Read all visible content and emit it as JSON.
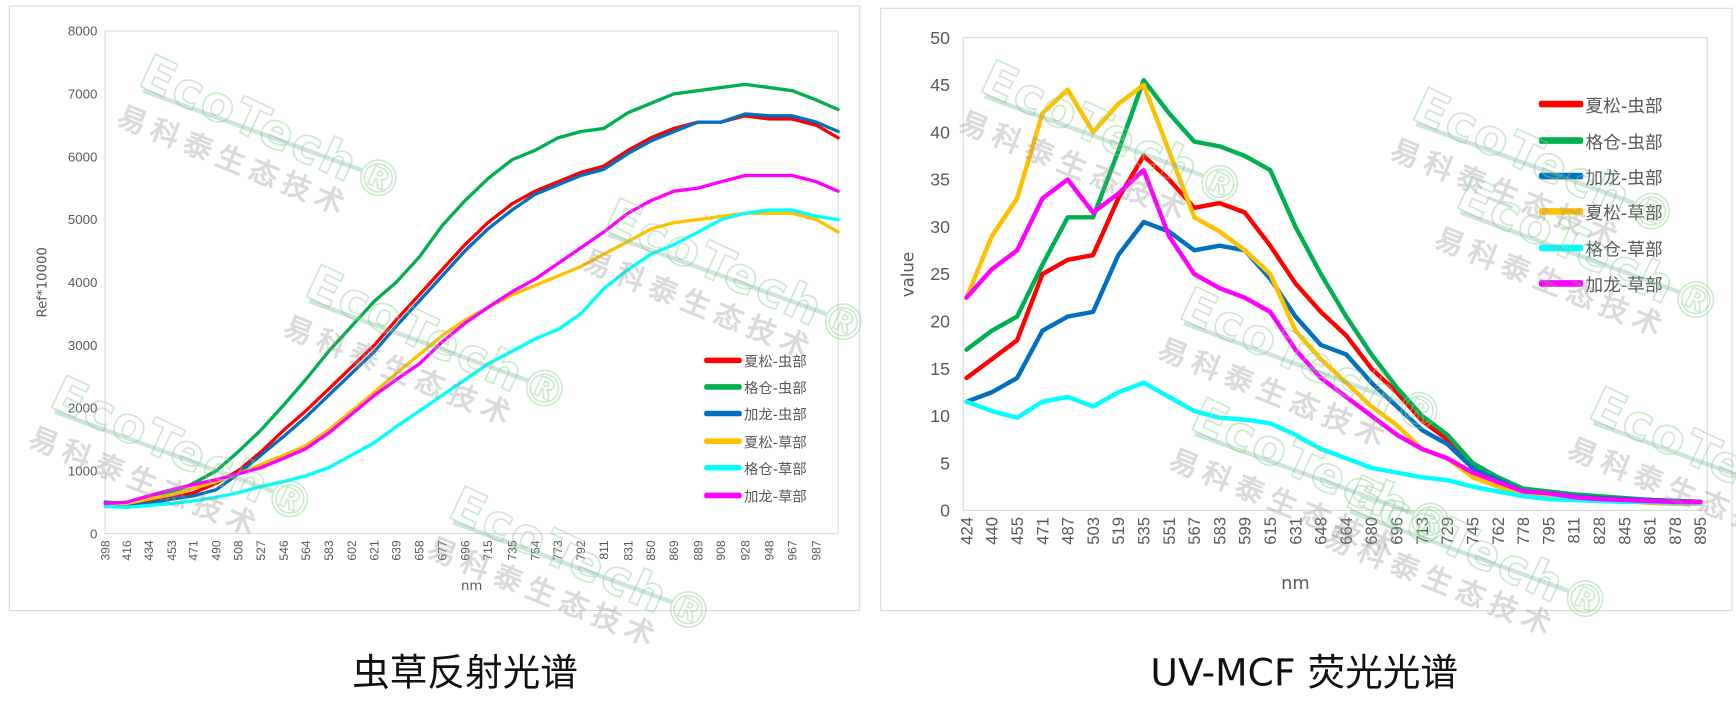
{
  "colors": {
    "red": "#ff0000",
    "green": "#00b050",
    "blue": "#0070c0",
    "yellow": "#ffc000",
    "cyan": "#00ffff",
    "magenta": "#ff00ff"
  },
  "captions": {
    "left": "虫草反射光谱",
    "right": "UV-MCF 荧光光谱"
  },
  "watermark": {
    "logo": "EcoTech®",
    "text": "易科泰生态技术"
  },
  "chart_data": [
    {
      "type": "line",
      "title": "",
      "xlabel": "nm",
      "ylabel": "Ref*10000",
      "ylim": [
        0,
        8000
      ],
      "yticks": [
        0,
        1000,
        2000,
        3000,
        4000,
        5000,
        6000,
        7000,
        8000
      ],
      "xticks": [
        398,
        416,
        434,
        453,
        471,
        490,
        508,
        527,
        546,
        564,
        583,
        602,
        621,
        639,
        658,
        677,
        696,
        715,
        735,
        754,
        773,
        792,
        811,
        831,
        850,
        869,
        889,
        908,
        928,
        948,
        967,
        987
      ],
      "x": [
        398,
        416,
        434,
        453,
        471,
        490,
        508,
        527,
        546,
        564,
        583,
        602,
        621,
        639,
        658,
        677,
        696,
        715,
        735,
        754,
        773,
        792,
        811,
        831,
        850,
        869,
        889,
        908,
        928,
        948,
        967,
        987,
        1005
      ],
      "grid": false,
      "legend": "right",
      "series": [
        {
          "name": "夏松-虫部",
          "color": "#ff0000",
          "values": [
            500,
            480,
            520,
            570,
            650,
            800,
            1000,
            1300,
            1650,
            1950,
            2300,
            2650,
            3000,
            3400,
            3800,
            4200,
            4600,
            4950,
            5250,
            5450,
            5600,
            5750,
            5850,
            6100,
            6300,
            6450,
            6550,
            6550,
            6650,
            6600,
            6600,
            6500,
            6300
          ]
        },
        {
          "name": "格仓-虫部",
          "color": "#00b050",
          "values": [
            500,
            480,
            560,
            650,
            800,
            1000,
            1300,
            1650,
            2050,
            2450,
            2900,
            3300,
            3700,
            4000,
            4400,
            4900,
            5300,
            5650,
            5950,
            6100,
            6300,
            6400,
            6450,
            6700,
            6850,
            7000,
            7050,
            7100,
            7150,
            7100,
            7050,
            6900,
            6750
          ]
        },
        {
          "name": "加龙-虫部",
          "color": "#0070c0",
          "values": [
            500,
            450,
            480,
            550,
            600,
            700,
            950,
            1250,
            1550,
            1850,
            2200,
            2550,
            2900,
            3300,
            3700,
            4100,
            4500,
            4850,
            5150,
            5400,
            5550,
            5700,
            5800,
            6050,
            6250,
            6400,
            6550,
            6550,
            6680,
            6650,
            6650,
            6550,
            6400
          ]
        },
        {
          "name": "夏松-草部",
          "color": "#ffc000",
          "values": [
            480,
            480,
            550,
            620,
            720,
            830,
            950,
            1100,
            1250,
            1400,
            1650,
            1950,
            2250,
            2550,
            2850,
            3150,
            3400,
            3600,
            3800,
            3950,
            4100,
            4250,
            4450,
            4650,
            4850,
            4950,
            5000,
            5050,
            5100,
            5100,
            5100,
            5000,
            4800
          ]
        },
        {
          "name": "格仓-草部",
          "color": "#00ffff",
          "values": [
            430,
            420,
            450,
            480,
            520,
            580,
            650,
            750,
            830,
            920,
            1050,
            1250,
            1450,
            1700,
            1950,
            2200,
            2450,
            2700,
            2900,
            3100,
            3250,
            3500,
            3900,
            4200,
            4450,
            4600,
            4800,
            5000,
            5100,
            5150,
            5150,
            5050,
            5000
          ]
        },
        {
          "name": "加龙-草部",
          "color": "#ff00ff",
          "values": [
            480,
            500,
            600,
            700,
            780,
            860,
            950,
            1050,
            1200,
            1350,
            1600,
            1900,
            2200,
            2450,
            2700,
            3050,
            3350,
            3600,
            3850,
            4050,
            4300,
            4550,
            4800,
            5100,
            5300,
            5450,
            5500,
            5600,
            5700,
            5700,
            5700,
            5600,
            5450
          ]
        }
      ]
    },
    {
      "type": "line",
      "title": "",
      "xlabel": "nm",
      "ylabel": "value",
      "ylim": [
        0,
        50
      ],
      "yticks": [
        0,
        5,
        10,
        15,
        20,
        25,
        30,
        35,
        40,
        45,
        50
      ],
      "categories": [
        424,
        440,
        455,
        471,
        487,
        503,
        519,
        535,
        551,
        567,
        583,
        599,
        615,
        631,
        648,
        664,
        680,
        696,
        713,
        729,
        745,
        762,
        778,
        795,
        811,
        828,
        845,
        861,
        878,
        895
      ],
      "grid": false,
      "legend": "top-right",
      "series": [
        {
          "name": "夏松-虫部",
          "color": "#ff0000",
          "values": [
            14,
            16,
            18,
            25,
            26.5,
            27,
            33,
            37.5,
            35,
            32,
            32.5,
            31.5,
            28,
            24,
            21,
            18.5,
            15,
            12.5,
            9.5,
            7.5,
            4.5,
            3,
            2,
            1.8,
            1.5,
            1.4,
            1.2,
            1.1,
            1,
            0.9
          ]
        },
        {
          "name": "格仓-虫部",
          "color": "#00b050",
          "values": [
            17,
            19,
            20.5,
            26,
            31,
            31,
            38,
            45.5,
            42,
            39,
            38.5,
            37.5,
            36,
            30,
            25,
            20.5,
            16.5,
            13,
            10,
            8,
            5,
            3.5,
            2.3,
            2,
            1.7,
            1.5,
            1.3,
            1.1,
            1,
            0.9
          ]
        },
        {
          "name": "加龙-虫部",
          "color": "#0070c0",
          "values": [
            11.5,
            12.5,
            14,
            19,
            20.5,
            21,
            27,
            30.5,
            29.5,
            27.5,
            28,
            27.5,
            24.5,
            20.5,
            17.5,
            16.5,
            13.5,
            11,
            8.5,
            7,
            4.5,
            3.2,
            2,
            1.8,
            1.5,
            1.3,
            1.2,
            1.1,
            1,
            0.9
          ]
        },
        {
          "name": "夏松-草部",
          "color": "#ffc000",
          "values": [
            22.5,
            29,
            33,
            42,
            44.5,
            40,
            43,
            45,
            38,
            31,
            29.5,
            27.5,
            25,
            19,
            16,
            13.5,
            11,
            9,
            6.5,
            5.5,
            3.5,
            2.5,
            1.8,
            1.5,
            1.3,
            1.2,
            1,
            0.8,
            0.7,
            0.7
          ]
        },
        {
          "name": "格仓-草部",
          "color": "#00ffff",
          "values": [
            11.5,
            10.5,
            9.8,
            11.5,
            12,
            11,
            12.5,
            13.5,
            12,
            10.5,
            9.8,
            9.6,
            9.2,
            8,
            6.5,
            5.5,
            4.5,
            4,
            3.5,
            3.2,
            2.5,
            2,
            1.5,
            1.2,
            1.1,
            1,
            0.9,
            0.9,
            0.8,
            0.8
          ]
        },
        {
          "name": "加龙-草部",
          "color": "#ff00ff",
          "values": [
            22.5,
            25.5,
            27.5,
            33,
            35,
            31.5,
            33.5,
            36,
            29,
            25,
            23.5,
            22.5,
            21,
            17,
            14,
            12,
            10,
            8,
            6.5,
            5.5,
            4,
            3,
            2,
            1.8,
            1.4,
            1.2,
            1.1,
            1,
            0.9,
            0.9
          ]
        }
      ]
    }
  ]
}
